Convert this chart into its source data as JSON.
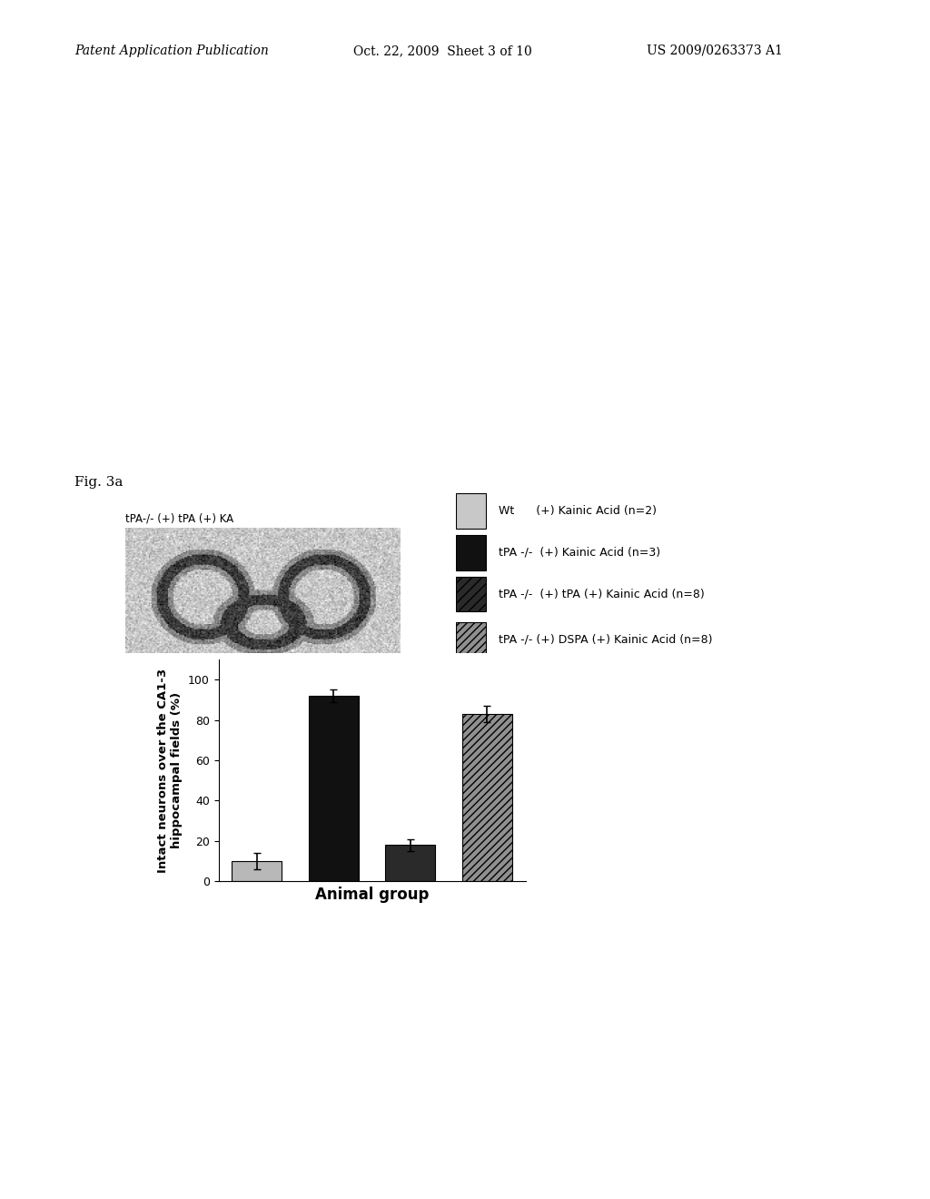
{
  "fig_label": "Fig. 3a",
  "patent_header_left": "Patent Application Publication",
  "patent_header_center": "Oct. 22, 2009  Sheet 3 of 10",
  "patent_header_right": "US 2009/0263373 A1",
  "image_label": "tPA-/- (+) tPA (+) KA",
  "bar_values": [
    10,
    92,
    18,
    83
  ],
  "bar_errors": [
    4,
    3,
    3,
    4
  ],
  "bar_colors": [
    "#b8b8b8",
    "#111111",
    "#2a2a2a",
    "#909090"
  ],
  "bar_hatches": [
    "",
    "",
    "",
    "////"
  ],
  "ylim": [
    0,
    110
  ],
  "yticks": [
    0,
    20,
    40,
    60,
    80,
    100
  ],
  "ylabel": "Intact neurons over the CA1-3\nhippocampal fields (%)",
  "xlabel": "Animal group",
  "legend_labels": [
    "Wt      (+) Kainic Acid (n=2)",
    "tPA -/-  (+) Kainic Acid (n=3)",
    "tPA -/-  (+) tPA (+) Kainic Acid (n=8)",
    "tPA -/- (+) DSPA (+) Kainic Acid (n=8)"
  ],
  "legend_colors": [
    "#c8c8c8",
    "#111111",
    "#2a2a2a",
    "#909090"
  ],
  "legend_hatches": [
    "",
    "",
    "///",
    "////"
  ]
}
